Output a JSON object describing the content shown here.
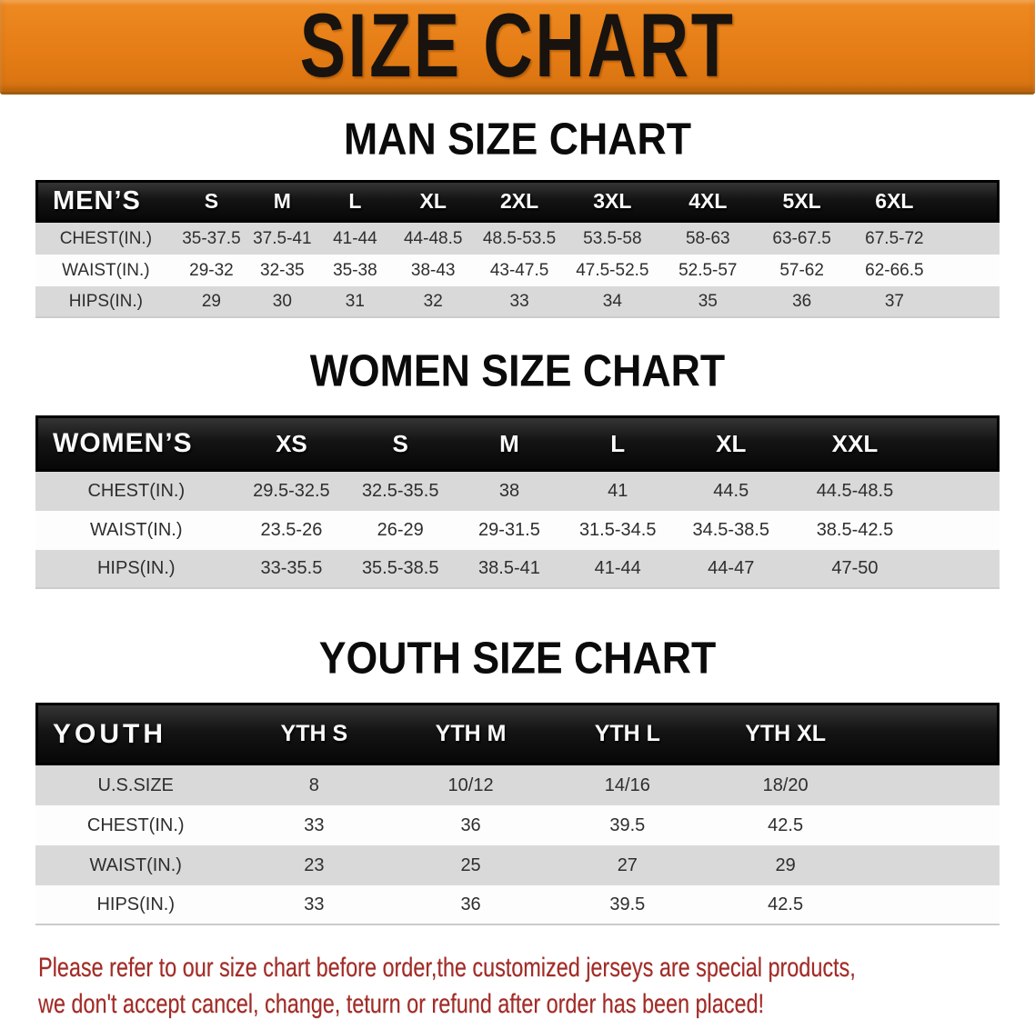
{
  "banner": {
    "title": "SIZE CHART"
  },
  "colors": {
    "banner_orange": "#e67d16",
    "banner_orange_light": "#ee8a21",
    "banner_orange_dark": "#d87310",
    "header_bar_black": "#141414",
    "row_gray": "#d9d9d9",
    "disclaimer_red": "#a32b26"
  },
  "sections": [
    {
      "heading": "MAN SIZE CHART",
      "group_label": "MEN’S",
      "columns": [
        "S",
        "M",
        "L",
        "XL",
        "2XL",
        "3XL",
        "4XL",
        "5XL",
        "6XL"
      ],
      "rows": [
        {
          "label": "CHEST(IN.)",
          "values": [
            "35-37.5",
            "37.5-41",
            "41-44",
            "44-48.5",
            "48.5-53.5",
            "53.5-58",
            "58-63",
            "63-67.5",
            "67.5-72"
          ]
        },
        {
          "label": "WAIST(IN.)",
          "values": [
            "29-32",
            "32-35",
            "35-38",
            "38-43",
            "43-47.5",
            "47.5-52.5",
            "52.5-57",
            "57-62",
            "62-66.5"
          ]
        },
        {
          "label": "HIPS(IN.)",
          "values": [
            "29",
            "30",
            "31",
            "32",
            "33",
            "34",
            "35",
            "36",
            "37"
          ]
        }
      ]
    },
    {
      "heading": "WOMEN SIZE CHART",
      "group_label": "WOMEN’S",
      "columns": [
        "XS",
        "S",
        "M",
        "L",
        "XL",
        "XXL"
      ],
      "rows": [
        {
          "label": "CHEST(IN.)",
          "values": [
            "29.5-32.5",
            "32.5-35.5",
            "38",
            "41",
            "44.5",
            "44.5-48.5"
          ]
        },
        {
          "label": "WAIST(IN.)",
          "values": [
            "23.5-26",
            "26-29",
            "29-31.5",
            "31.5-34.5",
            "34.5-38.5",
            "38.5-42.5"
          ]
        },
        {
          "label": "HIPS(IN.)",
          "values": [
            "33-35.5",
            "35.5-38.5",
            "38.5-41",
            "41-44",
            "44-47",
            "47-50"
          ]
        }
      ]
    },
    {
      "heading": "YOUTH SIZE CHART",
      "group_label": "YOUTH",
      "columns": [
        "YTH S",
        "YTH M",
        "YTH L",
        "YTH XL"
      ],
      "rows": [
        {
          "label": "U.S.SIZE",
          "values": [
            "8",
            "10/12",
            "14/16",
            "18/20"
          ]
        },
        {
          "label": "CHEST(IN.)",
          "values": [
            "33",
            "36",
            "39.5",
            "42.5"
          ]
        },
        {
          "label": "WAIST(IN.)",
          "values": [
            "23",
            "25",
            "27",
            "29"
          ]
        },
        {
          "label": "HIPS(IN.)",
          "values": [
            "33",
            "36",
            "39.5",
            "42.5"
          ]
        }
      ]
    }
  ],
  "disclaimer": {
    "line1": "Please refer to our size chart before order,the customized jerseys are special products,",
    "line2": "we don't accept cancel, change, teturn or refund after order has been placed!"
  }
}
